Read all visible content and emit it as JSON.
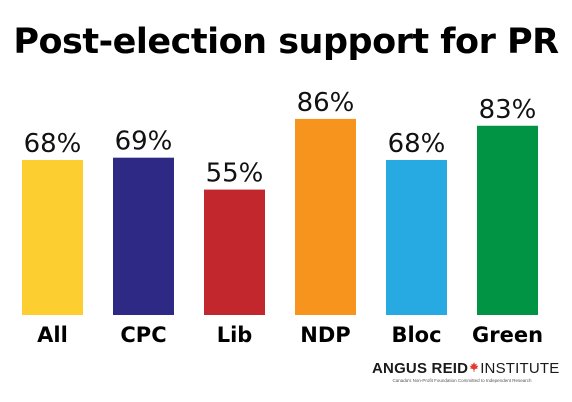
{
  "chart_data": {
    "type": "bar",
    "title": "Post-election support for PR",
    "categories": [
      "All",
      "CPC",
      "Lib",
      "NDP",
      "Bloc",
      "Green"
    ],
    "values": [
      68,
      69,
      55,
      86,
      68,
      83
    ],
    "value_labels": [
      "68%",
      "69%",
      "55%",
      "86%",
      "68%",
      "83%"
    ],
    "colors": [
      "#FDCE30",
      "#2E2985",
      "#C1272D",
      "#F7941D",
      "#27AAE1",
      "#009444"
    ],
    "unit": "%",
    "xlabel": "",
    "ylabel": "",
    "ylim": [
      0,
      100
    ],
    "grid": false,
    "legend": "none"
  },
  "branding": {
    "name_part1": "ANGUS REID",
    "name_part2": "INSTITUTE",
    "logo_icon": "maple-leaf-icon",
    "logo_color": "#E03C31",
    "tagline": "Canada's Non-Profit Foundation Committed to Independent Research"
  }
}
